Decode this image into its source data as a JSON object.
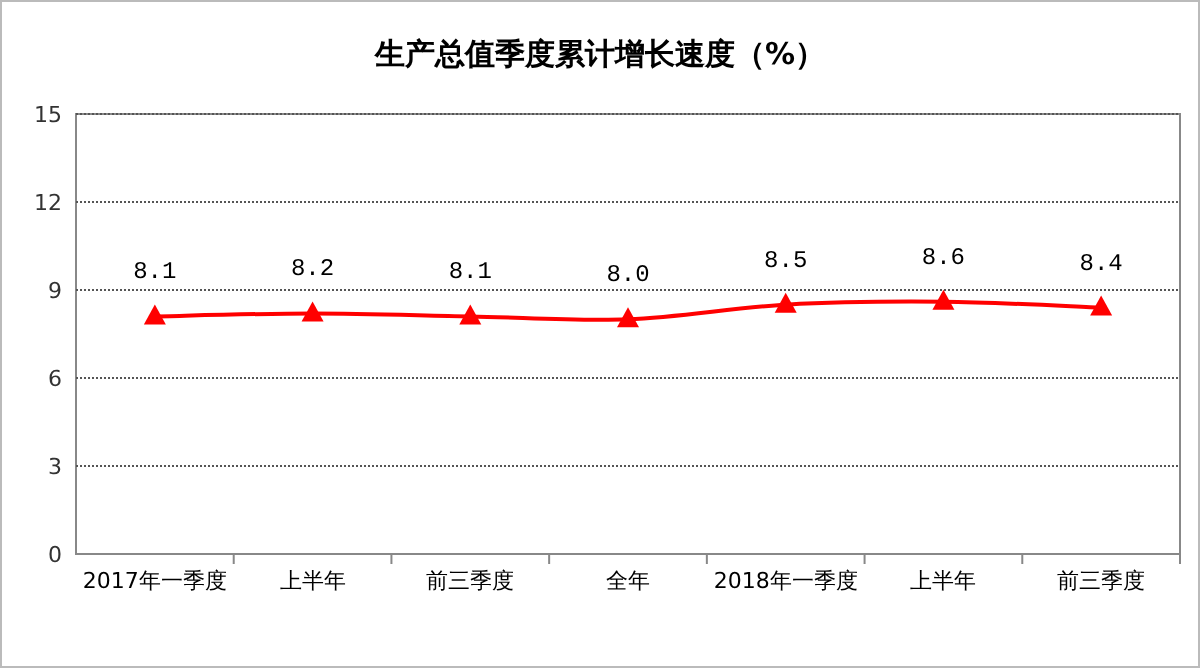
{
  "chart_data": {
    "type": "line",
    "title": "生产总值季度累计增长速度（%）",
    "categories": [
      "2017年一季度",
      "上半年",
      "前三季度",
      "全年",
      "2018年一季度",
      "上半年",
      "前三季度"
    ],
    "series": [
      {
        "color": "#ff0000",
        "values": [
          8.1,
          8.2,
          8.1,
          8.0,
          8.5,
          8.6,
          8.4
        ],
        "value_labels": [
          "8.1",
          "8.2",
          "8.1",
          "8.0",
          "8.5",
          "8.6",
          "8.4"
        ]
      }
    ],
    "ylim": [
      0,
      15
    ],
    "yticks": [
      0,
      3,
      6,
      9,
      12,
      15
    ],
    "grid": "y",
    "marker": "triangle",
    "line_style": "solid"
  }
}
